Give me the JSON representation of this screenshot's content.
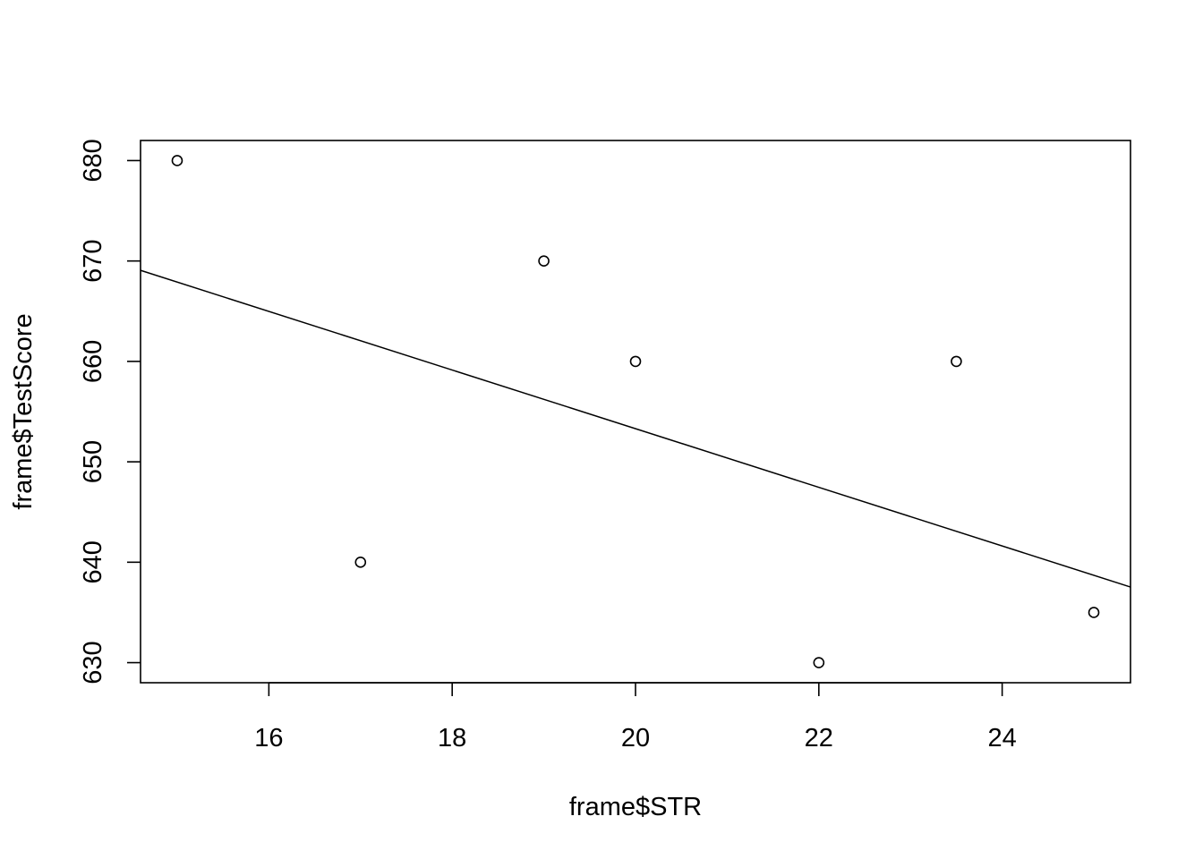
{
  "chart_data": {
    "type": "scatter",
    "title": "",
    "xlabel": "frame$STR",
    "ylabel": "frame$TestScore",
    "xlim": [
      14.6,
      25.4
    ],
    "ylim": [
      628,
      682
    ],
    "x_ticks": [
      16,
      18,
      20,
      22,
      24
    ],
    "y_ticks": [
      630,
      640,
      650,
      660,
      670,
      680
    ],
    "points": [
      {
        "x": 15,
        "y": 680
      },
      {
        "x": 17,
        "y": 640
      },
      {
        "x": 19,
        "y": 670
      },
      {
        "x": 20,
        "y": 660
      },
      {
        "x": 22,
        "y": 630
      },
      {
        "x": 23.5,
        "y": 660
      },
      {
        "x": 25,
        "y": 635
      }
    ],
    "regression_line": {
      "intercept": 711.7,
      "slope": -2.92
    },
    "grid": false,
    "colors": {
      "points": "#000000",
      "line": "#000000",
      "frame": "#000000"
    }
  }
}
